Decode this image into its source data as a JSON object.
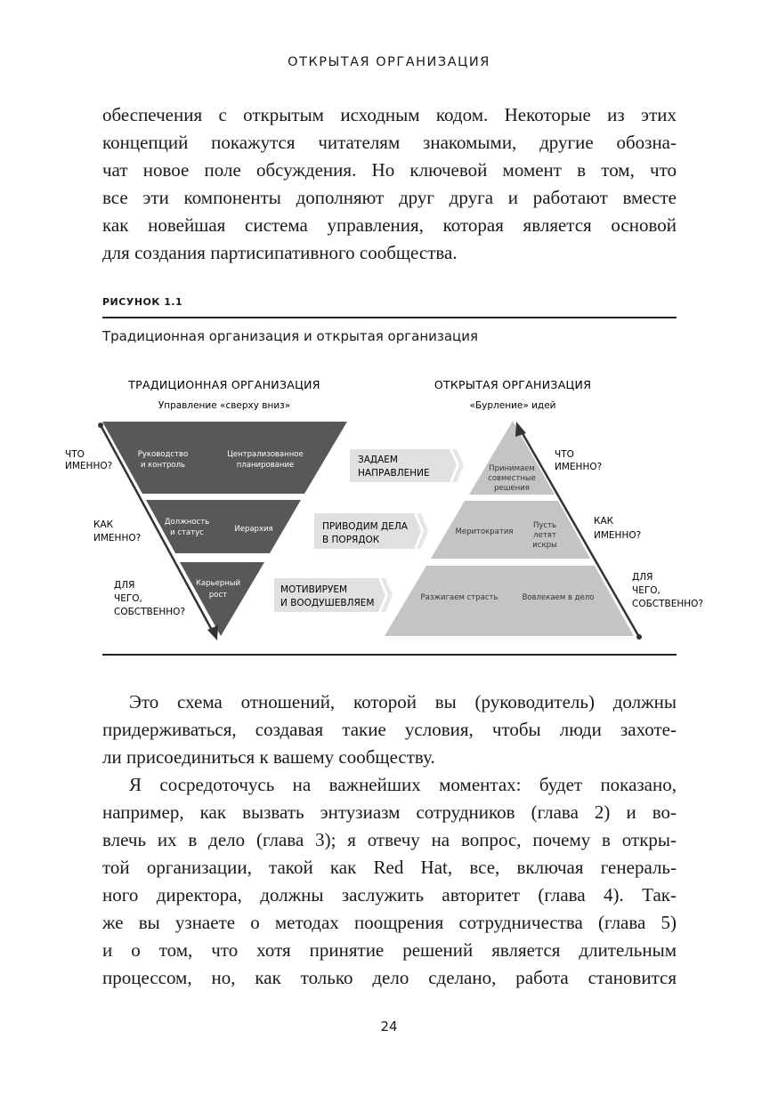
{
  "running_head": "ОТКРЫТАЯ ОРГАНИЗАЦИЯ",
  "paragraph_1": [
    "обеспечения с открытым исходным кодом. Некоторые из этих",
    "концепций покажутся читателям знакомыми, другие обозна-",
    "чат новое поле обсуждения. Но ключевой момент в том, что",
    "все эти компоненты дополняют друг друга и работают вместе",
    "как новейшая система управления, которая является основой",
    "для создания партисипативного сообщества."
  ],
  "figure": {
    "label": "РИСУНОК 1.1",
    "caption": "Традиционная организация и открытая организация",
    "traditional": {
      "title": "ТРАДИЦИОННАЯ ОРГАНИЗАЦИЯ",
      "subtitle": "Управление «сверху вниз»",
      "band1": [
        "Руководство",
        "и контроль",
        "Централизованное",
        "планирование"
      ],
      "band2": [
        "Должность",
        "и статус",
        "Иерархия"
      ],
      "band3": [
        "Карьерный",
        "рост"
      ],
      "questions": {
        "what": [
          "ЧТО",
          "ИМЕННО?"
        ],
        "how": [
          "КАК",
          "ИМЕННО?"
        ],
        "why": [
          "ДЛЯ",
          "ЧЕГО,",
          "СОБСТВЕННО?"
        ]
      }
    },
    "middle": {
      "direction": [
        "ЗАДАЕМ",
        "НАПРАВЛЕНИЕ"
      ],
      "order": [
        "ПРИВОДИМ ДЕЛА",
        "В ПОРЯДОК"
      ],
      "motivate": [
        "МОТИВИРУЕМ",
        "И ВООДУШЕВЛЯЕМ"
      ]
    },
    "open": {
      "title": "ОТКРЫТАЯ ОРГАНИЗАЦИЯ",
      "subtitle": "«Бурление» идей",
      "band1": [
        "Принимаем",
        "совместные",
        "решения"
      ],
      "band2": [
        "Меритократия",
        "Пусть",
        "летят",
        "искры"
      ],
      "band3": [
        "Разжигаем страсть",
        "Вовлекаем в дело"
      ],
      "questions": {
        "what": [
          "ЧТО",
          "ИМЕННО?"
        ],
        "how": [
          "КАК",
          "ИМЕННО?"
        ],
        "why": [
          "ДЛЯ",
          "ЧЕГО,",
          "СОБСТВЕННО?"
        ]
      }
    },
    "colors": {
      "dark": "#585858",
      "light": "#c4c4c4",
      "chevron": "#e0e0e0"
    }
  },
  "paragraph_2": [
    "Это схема отношений, которой вы (руководитель) должны",
    "придерживаться, создавая такие условия, чтобы люди захоте-",
    "ли присоединиться к вашему сообществу."
  ],
  "paragraph_3": [
    "Я сосредоточусь на важнейших моментах: будет показано,",
    "например, как вызвать энтузиазм сотрудников (глава 2) и во-",
    "влечь их в дело (глава 3); я отвечу на вопрос, почему в откры-",
    "той организации, такой как Red Hat, все, включая генераль-",
    "ного директора, должны заслужить авторитет (глава 4). Так-",
    "же вы узнаете о методах поощрения сотрудничества (глава 5)",
    "и о том, что хотя принятие решений является длительным",
    "процессом, но, как только дело сделано, работа становится"
  ],
  "page_number": "24"
}
